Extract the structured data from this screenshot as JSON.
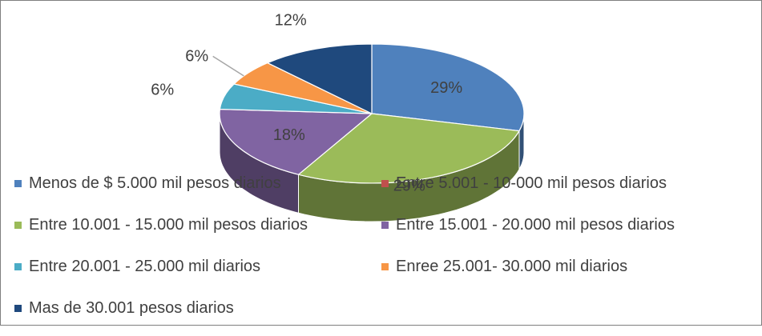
{
  "chart_data": {
    "type": "pie",
    "title": "",
    "slices": [
      {
        "label": "Menos de $ 5.000 mil pesos diarios",
        "value": 29,
        "display": "29%",
        "color": "#4f81bd"
      },
      {
        "label": "Entre 10.001 - 15.000 mil pesos diarios",
        "value": 29,
        "display": "29%",
        "color": "#9bbb59"
      },
      {
        "label": "Entre 15.001 - 20.000 mil  pesos diarios",
        "value": 18,
        "display": "18%",
        "color": "#8064a2"
      },
      {
        "label": "Entre 20.001 - 25.000 mil diarios",
        "value": 6,
        "display": "6%",
        "color": "#4bacc6"
      },
      {
        "label": "Enree 25.001- 30.000 mil diarios",
        "value": 6,
        "display": "6%",
        "color": "#f79646"
      },
      {
        "label": "Mas de 30.001 pesos  diarios",
        "value": 12,
        "display": "12%",
        "color": "#1f497d"
      }
    ],
    "legend": {
      "placement": "bottom",
      "entries": [
        {
          "label": "Menos de $ 5.000 mil pesos diarios",
          "color": "#4f81bd"
        },
        {
          "label": "Entre 5.001 - 10-000 mil pesos diarios",
          "color": "#c0504d"
        },
        {
          "label": "Entre 10.001 - 15.000 mil pesos diarios",
          "color": "#9bbb59"
        },
        {
          "label": "Entre 15.001 - 20.000 mil  pesos diarios",
          "color": "#8064a2"
        },
        {
          "label": "Entre 20.001 - 25.000 mil diarios",
          "color": "#4bacc6"
        },
        {
          "label": "Enree 25.001- 30.000 mil diarios",
          "color": "#f79646"
        },
        {
          "label": "Mas de 30.001 pesos  diarios",
          "color": "#1f497d"
        }
      ]
    }
  }
}
